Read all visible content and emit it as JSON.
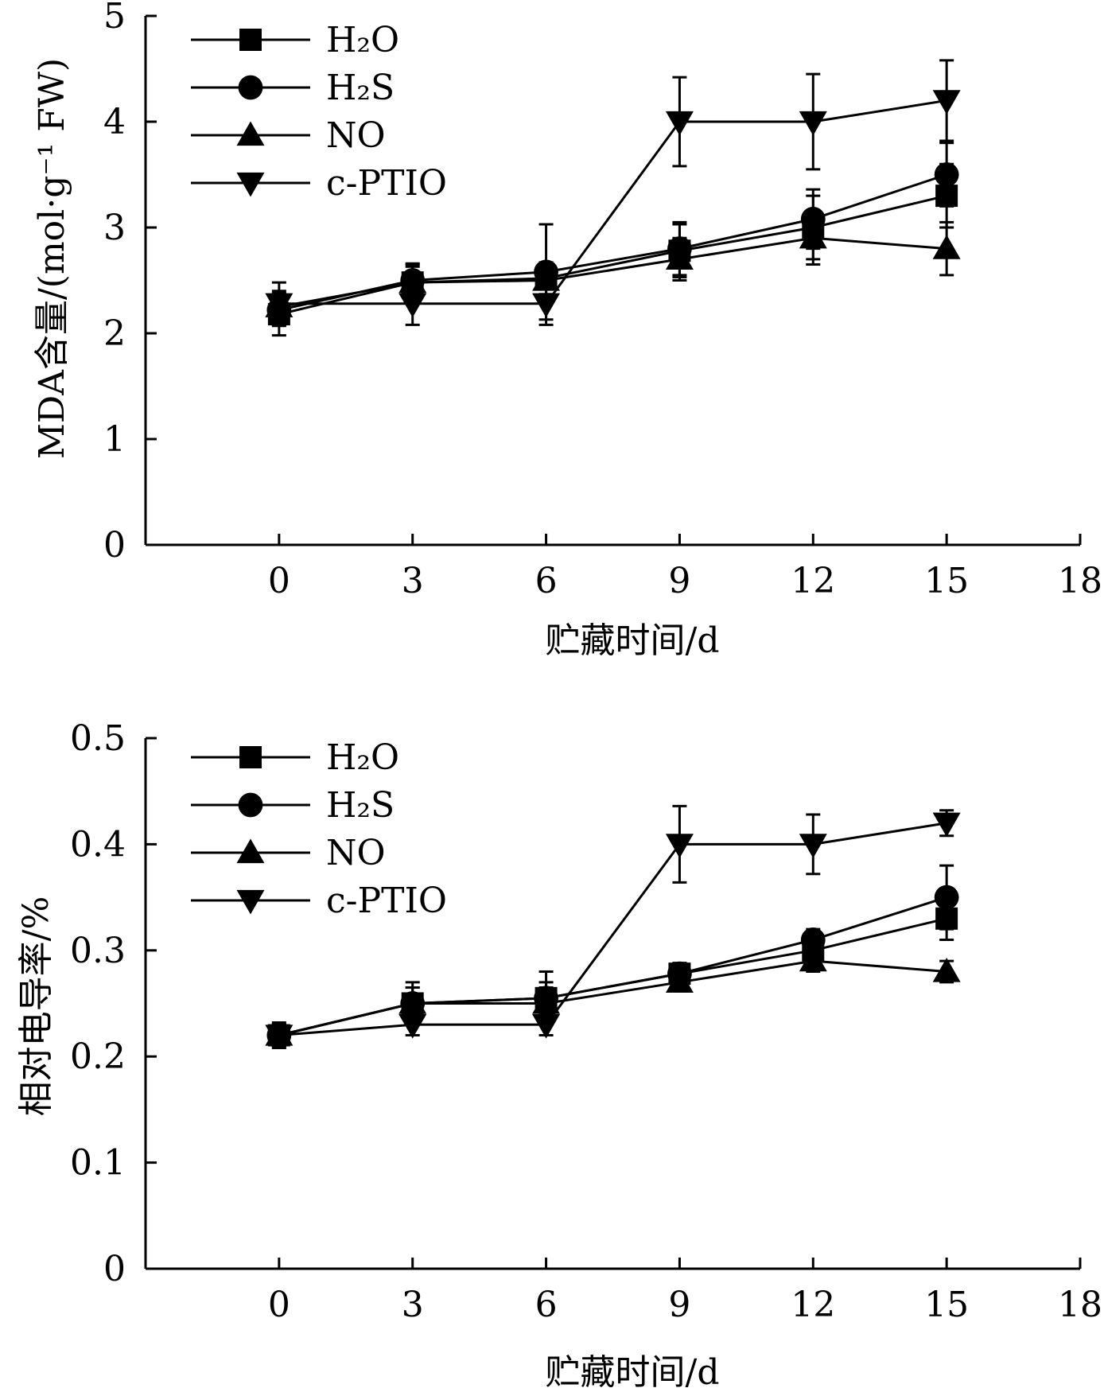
{
  "chart_data": [
    {
      "type": "line",
      "title": "",
      "xlabel": "贮藏时间/d",
      "ylabel": "MDA含量/(mol·g⁻¹ FW)",
      "xlim": [
        -3,
        18
      ],
      "ylim": [
        0,
        5
      ],
      "xticks": [
        0,
        3,
        6,
        9,
        12,
        15,
        18
      ],
      "xtick_labels": [
        "0",
        "3",
        "6",
        "9",
        "12",
        "15",
        "18"
      ],
      "yticks": [
        0,
        1,
        2,
        3,
        4,
        5
      ],
      "ytick_labels": [
        "0",
        "1",
        "2",
        "3",
        "4",
        "5"
      ],
      "grid": false,
      "legend_position": "top-left",
      "x": [
        0,
        3,
        6,
        9,
        12,
        15
      ],
      "series": [
        {
          "name": "H₂O",
          "marker": "square",
          "values": [
            2.18,
            2.48,
            2.52,
            2.78,
            3.0,
            3.3
          ],
          "errors": [
            0.2,
            0.15,
            0.15,
            0.25,
            0.3,
            0.3
          ]
        },
        {
          "name": "H₂S",
          "marker": "circle",
          "values": [
            2.22,
            2.5,
            2.58,
            2.8,
            3.08,
            3.5
          ],
          "errors": [
            0.15,
            0.15,
            0.45,
            0.25,
            0.28,
            0.3
          ]
        },
        {
          "name": "NO",
          "marker": "triangle-up",
          "values": [
            2.25,
            2.48,
            2.5,
            2.7,
            2.9,
            2.8
          ],
          "errors": [
            0.15,
            0.18,
            0.15,
            0.2,
            0.25,
            0.25
          ]
        },
        {
          "name": "c-PTIO",
          "marker": "triangle-down",
          "values": [
            2.28,
            2.28,
            2.28,
            4.0,
            4.0,
            4.2
          ],
          "errors": [
            0.2,
            0.2,
            0.2,
            0.42,
            0.45,
            0.38
          ]
        }
      ]
    },
    {
      "type": "line",
      "title": "",
      "xlabel": "贮藏时间/d",
      "ylabel": "相对电导率/%",
      "xlim": [
        -3,
        18
      ],
      "ylim": [
        0,
        0.5
      ],
      "xticks": [
        0,
        3,
        6,
        9,
        12,
        15,
        18
      ],
      "xtick_labels": [
        "0",
        "3",
        "6",
        "9",
        "12",
        "15",
        "18"
      ],
      "yticks": [
        0,
        0.1,
        0.2,
        0.3,
        0.4,
        0.5
      ],
      "ytick_labels": [
        "0",
        "0.1",
        "0.2",
        "0.3",
        "0.4",
        "0.5"
      ],
      "grid": false,
      "legend_position": "top-left",
      "x": [
        0,
        3,
        6,
        9,
        12,
        15
      ],
      "series": [
        {
          "name": "H₂O",
          "marker": "square",
          "values": [
            0.22,
            0.25,
            0.255,
            0.278,
            0.3,
            0.33
          ],
          "errors": [
            0.012,
            0.015,
            0.015,
            0.01,
            0.01,
            0.02
          ]
        },
        {
          "name": "H₂S",
          "marker": "circle",
          "values": [
            0.22,
            0.25,
            0.255,
            0.278,
            0.31,
            0.35
          ],
          "errors": [
            0.01,
            0.02,
            0.025,
            0.01,
            0.01,
            0.03
          ]
        },
        {
          "name": "NO",
          "marker": "triangle-up",
          "values": [
            0.22,
            0.25,
            0.25,
            0.27,
            0.29,
            0.28
          ],
          "errors": [
            0.01,
            0.015,
            0.015,
            0.008,
            0.01,
            0.01
          ]
        },
        {
          "name": "c-PTIO",
          "marker": "triangle-down",
          "values": [
            0.22,
            0.23,
            0.23,
            0.4,
            0.4,
            0.42
          ],
          "errors": [
            0.01,
            0.01,
            0.01,
            0.036,
            0.028,
            0.012
          ]
        }
      ]
    }
  ]
}
